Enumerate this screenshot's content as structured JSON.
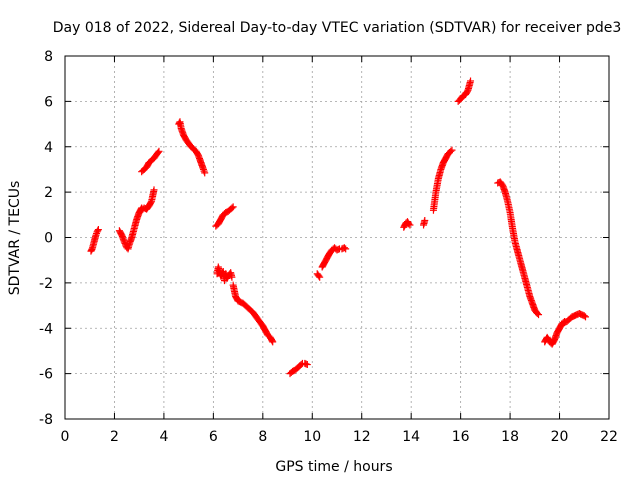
{
  "chart_data": {
    "type": "scatter",
    "title": "Day 018 of 2022, Sidereal Day-to-day VTEC variation (SDTVAR) for receiver pde3",
    "xlabel": "GPS time / hours",
    "ylabel": "SDTVAR / TECUs",
    "xlim": [
      0,
      22
    ],
    "ylim": [
      -8,
      8
    ],
    "grid": true,
    "marker": "+",
    "color": "#ff0000",
    "x_ticks": [
      "0",
      "2",
      "4",
      "6",
      "8",
      "10",
      "12",
      "14",
      "16",
      "18",
      "20",
      "22"
    ],
    "y_ticks": [
      "-8",
      "-6",
      "-4",
      "-2",
      "0",
      "2",
      "4",
      "6",
      "8"
    ],
    "segments": [
      {
        "x": [
          1.05,
          1.1,
          1.15,
          1.2,
          1.25,
          1.3,
          1.35
        ],
        "y": [
          -0.6,
          -0.5,
          -0.3,
          -0.1,
          0.1,
          0.25,
          0.35
        ]
      },
      {
        "x": [
          2.2,
          2.3,
          2.4,
          2.5,
          2.55,
          2.6,
          2.7,
          2.8,
          2.9,
          3.0,
          3.1
        ],
        "y": [
          0.3,
          0.1,
          -0.2,
          -0.45,
          -0.5,
          -0.3,
          0.0,
          0.4,
          0.8,
          1.1,
          1.3
        ]
      },
      {
        "x": [
          3.1,
          3.2,
          3.3,
          3.4,
          3.5,
          3.6
        ],
        "y": [
          1.2,
          1.3,
          1.25,
          1.4,
          1.6,
          2.1
        ]
      },
      {
        "x": [
          3.1,
          3.2,
          3.3,
          3.4,
          3.5,
          3.6,
          3.7,
          3.8
        ],
        "y": [
          2.9,
          3.0,
          3.1,
          3.3,
          3.4,
          3.5,
          3.65,
          3.8
        ]
      },
      {
        "x": [
          4.6,
          4.65,
          4.7,
          4.8,
          4.9,
          5.0,
          5.1,
          5.2,
          5.3,
          5.4,
          5.5,
          5.6,
          5.65
        ],
        "y": [
          5.0,
          5.1,
          4.8,
          4.5,
          4.3,
          4.15,
          4.0,
          3.9,
          3.8,
          3.6,
          3.3,
          3.0,
          2.85
        ]
      },
      {
        "x": [
          6.1,
          6.2,
          6.3,
          6.4,
          6.5,
          6.6,
          6.7,
          6.8
        ],
        "y": [
          0.5,
          0.6,
          0.8,
          1.0,
          1.1,
          1.15,
          1.25,
          1.35
        ]
      },
      {
        "x": [
          6.15,
          6.2,
          6.25,
          6.3,
          6.4,
          6.45,
          6.5,
          6.55,
          6.6,
          6.7,
          6.75
        ],
        "y": [
          -1.6,
          -1.3,
          -1.5,
          -1.7,
          -1.5,
          -1.9,
          -1.6,
          -1.8,
          -1.7,
          -1.55,
          -1.75
        ]
      },
      {
        "x": [
          6.8,
          6.9,
          7.0,
          7.2,
          7.4,
          7.6,
          7.8,
          8.0,
          8.1,
          8.2,
          8.3,
          8.4
        ],
        "y": [
          -2.1,
          -2.6,
          -2.8,
          -2.9,
          -3.1,
          -3.3,
          -3.6,
          -3.9,
          -4.1,
          -4.3,
          -4.4,
          -4.6
        ]
      },
      {
        "x": [
          9.1,
          9.2,
          9.3,
          9.4,
          9.5,
          9.6,
          9.7,
          9.8
        ],
        "y": [
          -6.0,
          -5.9,
          -5.85,
          -5.75,
          -5.65,
          -5.55,
          -5.55,
          -5.6
        ]
      },
      {
        "x": [
          10.2,
          10.3
        ],
        "y": [
          -1.6,
          -1.75
        ]
      },
      {
        "x": [
          10.4,
          10.5,
          10.6,
          10.7,
          10.8,
          10.9,
          11.0,
          11.1,
          11.2,
          11.3,
          11.35
        ],
        "y": [
          -1.3,
          -1.1,
          -0.9,
          -0.7,
          -0.55,
          -0.45,
          -0.55,
          -0.5,
          -0.5,
          -0.45,
          -0.5
        ]
      },
      {
        "x": [
          13.7,
          13.75,
          13.8,
          13.85,
          13.9,
          13.95
        ],
        "y": [
          0.45,
          0.55,
          0.65,
          0.7,
          0.6,
          0.55
        ]
      },
      {
        "x": [
          14.5,
          14.55
        ],
        "y": [
          0.55,
          0.75
        ]
      },
      {
        "x": [
          14.9,
          15.0,
          15.1,
          15.2,
          15.3,
          15.4,
          15.5,
          15.6,
          15.65
        ],
        "y": [
          1.2,
          2.0,
          2.6,
          3.0,
          3.3,
          3.5,
          3.7,
          3.8,
          3.85
        ]
      },
      {
        "x": [
          15.9,
          16.0,
          16.1,
          16.2,
          16.3,
          16.35,
          16.4
        ],
        "y": [
          6.0,
          6.1,
          6.25,
          6.3,
          6.5,
          6.7,
          6.9
        ]
      },
      {
        "x": [
          17.5,
          17.6,
          17.7,
          17.8,
          17.9,
          18.0,
          18.1,
          18.2,
          18.3,
          18.4,
          18.5,
          18.6,
          18.7,
          18.8,
          18.9,
          19.0,
          19.1,
          19.15
        ],
        "y": [
          2.4,
          2.45,
          2.3,
          2.0,
          1.6,
          1.1,
          0.4,
          -0.2,
          -0.6,
          -1.0,
          -1.4,
          -1.8,
          -2.2,
          -2.6,
          -2.9,
          -3.2,
          -3.35,
          -3.4
        ]
      },
      {
        "x": [
          19.4,
          19.5,
          19.6,
          19.7,
          19.8,
          19.9,
          20.0,
          20.1,
          20.2
        ],
        "y": [
          -4.6,
          -4.4,
          -4.6,
          -4.7,
          -4.5,
          -4.2,
          -4.0,
          -3.8,
          -3.7
        ]
      },
      {
        "x": [
          20.2,
          20.3,
          20.4,
          20.5,
          20.6,
          20.7,
          20.8,
          20.9,
          21.0,
          21.05
        ],
        "y": [
          -3.75,
          -3.7,
          -3.6,
          -3.5,
          -3.45,
          -3.4,
          -3.35,
          -3.4,
          -3.45,
          -3.5
        ]
      }
    ]
  }
}
